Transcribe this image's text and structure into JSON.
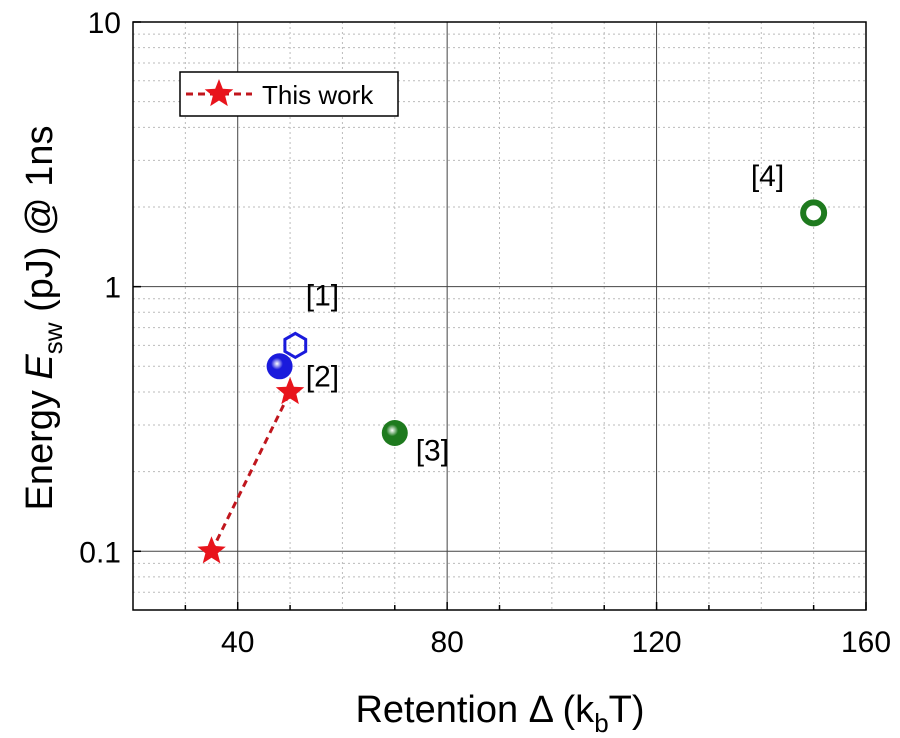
{
  "chart_data": {
    "type": "scatter",
    "xlabel": "Retention Δ (k",
    "xlabel_sub": "b",
    "xlabel_end": "T)",
    "ylabel_prefix": "Energy ",
    "ylabel_italic": "E",
    "ylabel_sub": "sw",
    "ylabel_suffix": " (pJ) @ 1ns",
    "xlim": [
      20,
      160
    ],
    "ylim": [
      0.06,
      10
    ],
    "y_scale": "log",
    "grid": true,
    "legend_position": "top-left",
    "x_ticks": [
      40,
      80,
      120,
      160
    ],
    "x_tick_labels": [
      "40",
      "80",
      "120",
      "160"
    ],
    "y_ticks": [
      0.1,
      1,
      10
    ],
    "y_tick_labels": [
      "0.1",
      "1",
      "10"
    ],
    "series": [
      {
        "name": "This work",
        "marker": "star",
        "line": "dashed",
        "color": "#e8141c",
        "points": [
          {
            "x": 35,
            "y": 0.1
          },
          {
            "x": 50,
            "y": 0.4
          }
        ]
      },
      {
        "marker": "hexagon-open",
        "color": "#1a1adc",
        "points": [
          {
            "x": 51,
            "y": 0.6
          }
        ]
      },
      {
        "marker": "sphere",
        "color": "#1a1adc",
        "points": [
          {
            "x": 48,
            "y": 0.5
          }
        ]
      },
      {
        "marker": "sphere",
        "color": "#1e7a1e",
        "points": [
          {
            "x": 70,
            "y": 0.28
          }
        ]
      },
      {
        "marker": "ring",
        "color": "#1e7a1e",
        "points": [
          {
            "x": 150,
            "y": 1.9
          }
        ]
      }
    ],
    "annotations": [
      {
        "text": "[1]",
        "x": 53,
        "y": 0.85
      },
      {
        "text": "[2]",
        "x": 53,
        "y": 0.42
      },
      {
        "text": "[3]",
        "x": 74,
        "y": 0.22
      },
      {
        "text": "[4]",
        "x": 138,
        "y": 2.4
      }
    ]
  }
}
